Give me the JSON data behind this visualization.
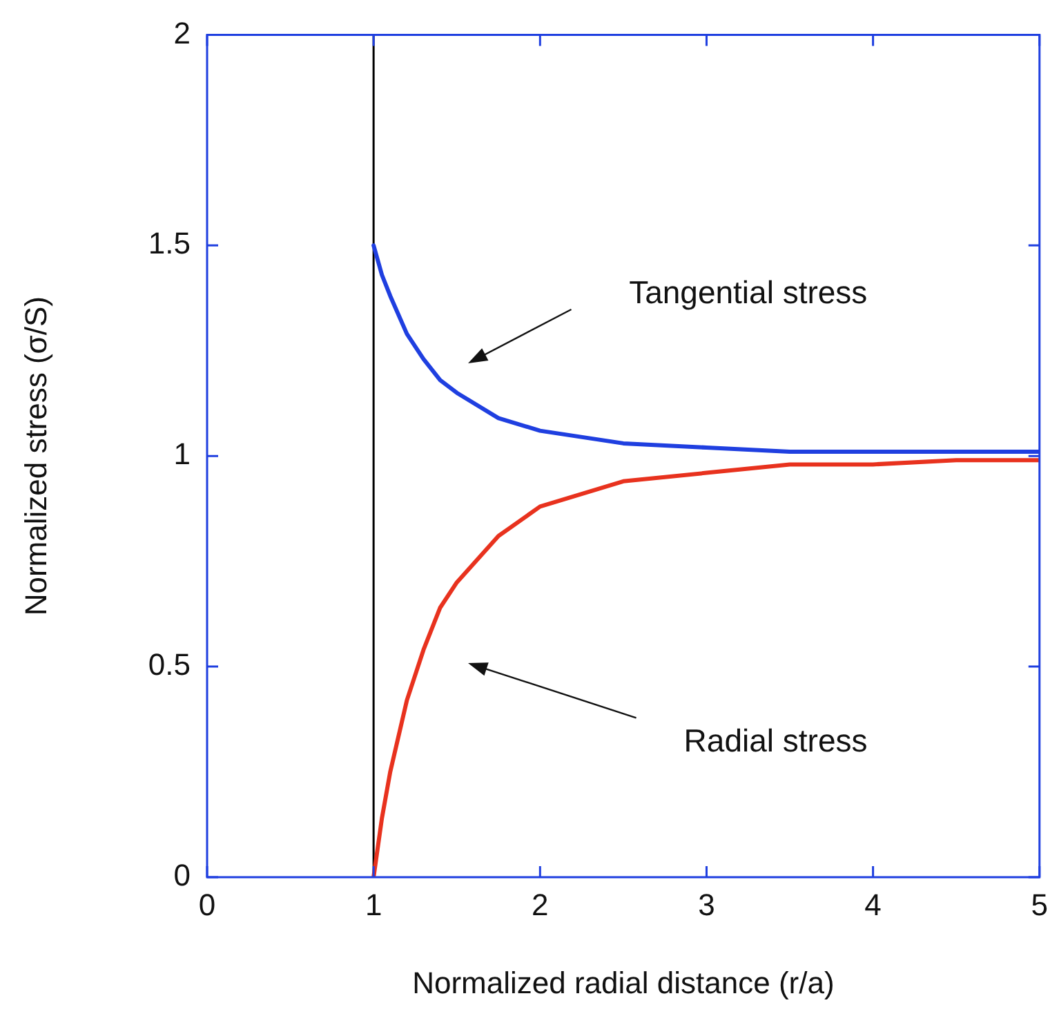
{
  "chart_data": {
    "type": "line",
    "xlabel": "Normalized radial distance (r/a)",
    "ylabel": "Normalized stress (σ/S)",
    "x": [
      1,
      1.05,
      1.1,
      1.2,
      1.3,
      1.4,
      1.5,
      1.75,
      2,
      2.5,
      3,
      3.5,
      4,
      4.5,
      5
    ],
    "series": [
      {
        "color": "#1f3fe0",
        "values": [
          1.5,
          1.43,
          1.38,
          1.29,
          1.23,
          1.18,
          1.15,
          1.09,
          1.06,
          1.03,
          1.02,
          1.01,
          1.01,
          1.01,
          1.01
        ]
      },
      {
        "color": "#e8321e",
        "values": [
          0,
          0.14,
          0.25,
          0.42,
          0.54,
          0.64,
          0.7,
          0.81,
          0.88,
          0.94,
          0.96,
          0.98,
          0.98,
          0.99,
          0.99
        ]
      }
    ],
    "xlim": [
      0,
      5
    ],
    "xticks": [
      0,
      1,
      2,
      3,
      4,
      5
    ],
    "ylim": [
      0,
      2
    ],
    "yticks": [
      0,
      0.5,
      1,
      1.5,
      2
    ],
    "ref_lines": [
      {
        "axis": "x",
        "value": 1,
        "color": "#000000"
      }
    ],
    "annotations": [
      "Tangential stress",
      "Radial stress"
    ],
    "grid": false,
    "legend": false,
    "marker": "none",
    "line_style": "solid"
  }
}
